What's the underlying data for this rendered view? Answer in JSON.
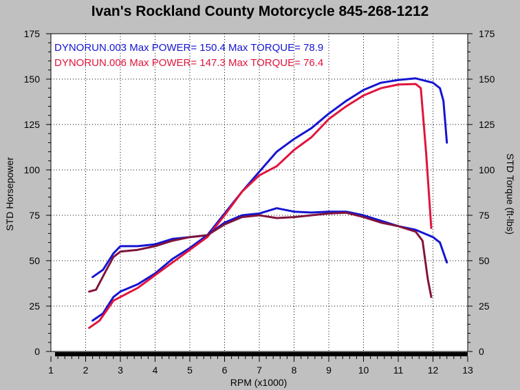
{
  "chart_data": {
    "type": "line",
    "title": "Ivan's Rockland County Motorcycle  845-268-1212",
    "xlabel": "RPM (x1000)",
    "ylabel_left": "STD Horsepower",
    "ylabel_right": "STD Torque (ft-lbs)",
    "xlim": [
      1,
      13
    ],
    "ylim": [
      0,
      175
    ],
    "x_ticks": [
      "1",
      "2",
      "3",
      "4",
      "5",
      "6",
      "7",
      "8",
      "9",
      "10",
      "11",
      "12",
      "13"
    ],
    "y_ticks": [
      "0",
      "25",
      "50",
      "75",
      "100",
      "125",
      "150",
      "175"
    ],
    "grid": true,
    "legend_position": "top-left",
    "legend": [
      {
        "text": "DYNORUN.003  Max POWER= 150.4  Max TORQUE= 78.9",
        "color": "#1414d2"
      },
      {
        "text": "DYNORUN.006  Max POWER= 147.3  Max TORQUE= 76.4",
        "color": "#e0143c"
      }
    ],
    "series": [
      {
        "name": "DYNORUN.003 power",
        "color": "#1414d2",
        "points": [
          [
            2.2,
            17
          ],
          [
            2.5,
            21
          ],
          [
            2.8,
            30
          ],
          [
            3.0,
            33
          ],
          [
            3.5,
            37
          ],
          [
            4.0,
            43
          ],
          [
            4.5,
            51
          ],
          [
            5.0,
            57
          ],
          [
            5.5,
            64
          ],
          [
            6.0,
            76
          ],
          [
            6.5,
            88
          ],
          [
            7.0,
            99
          ],
          [
            7.5,
            110
          ],
          [
            8.0,
            117
          ],
          [
            8.5,
            123
          ],
          [
            9.0,
            131
          ],
          [
            9.5,
            138
          ],
          [
            10.0,
            144
          ],
          [
            10.5,
            148
          ],
          [
            11.0,
            149.5
          ],
          [
            11.5,
            150.4
          ],
          [
            12.0,
            148
          ],
          [
            12.2,
            145
          ],
          [
            12.3,
            138
          ],
          [
            12.4,
            115
          ]
        ]
      },
      {
        "name": "DYNORUN.006 power",
        "color": "#e0143c",
        "points": [
          [
            2.1,
            13
          ],
          [
            2.4,
            17
          ],
          [
            2.8,
            28
          ],
          [
            3.0,
            30
          ],
          [
            3.5,
            35
          ],
          [
            4.0,
            42
          ],
          [
            4.5,
            49
          ],
          [
            5.0,
            56
          ],
          [
            5.5,
            63
          ],
          [
            6.0,
            75
          ],
          [
            6.5,
            88
          ],
          [
            7.0,
            97
          ],
          [
            7.5,
            102
          ],
          [
            8.0,
            111
          ],
          [
            8.5,
            118
          ],
          [
            9.0,
            128
          ],
          [
            9.5,
            135
          ],
          [
            10.0,
            141
          ],
          [
            10.5,
            145
          ],
          [
            11.0,
            147
          ],
          [
            11.5,
            147.3
          ],
          [
            11.65,
            145
          ],
          [
            11.8,
            110
          ],
          [
            11.95,
            68
          ]
        ]
      },
      {
        "name": "DYNORUN.003 torque",
        "color": "#1414d2",
        "points": [
          [
            2.2,
            41
          ],
          [
            2.5,
            45
          ],
          [
            2.8,
            54
          ],
          [
            3.0,
            58
          ],
          [
            3.5,
            58
          ],
          [
            4.0,
            59
          ],
          [
            4.5,
            62
          ],
          [
            5.0,
            63
          ],
          [
            5.5,
            64
          ],
          [
            6.0,
            71
          ],
          [
            6.5,
            75
          ],
          [
            7.0,
            76
          ],
          [
            7.5,
            78.9
          ],
          [
            8.0,
            77
          ],
          [
            8.5,
            76.5
          ],
          [
            9.0,
            77
          ],
          [
            9.5,
            77
          ],
          [
            10.0,
            75
          ],
          [
            10.5,
            72
          ],
          [
            11.0,
            69
          ],
          [
            11.5,
            67
          ],
          [
            12.0,
            63
          ],
          [
            12.2,
            60
          ],
          [
            12.4,
            49
          ]
        ]
      },
      {
        "name": "DYNORUN.006 torque",
        "color": "#80143c",
        "points": [
          [
            2.1,
            33
          ],
          [
            2.3,
            34
          ],
          [
            2.6,
            45
          ],
          [
            2.8,
            52
          ],
          [
            3.0,
            55
          ],
          [
            3.5,
            56
          ],
          [
            4.0,
            58
          ],
          [
            4.5,
            61
          ],
          [
            5.0,
            63
          ],
          [
            5.5,
            64
          ],
          [
            6.0,
            70
          ],
          [
            6.5,
            74
          ],
          [
            7.0,
            75
          ],
          [
            7.5,
            73.5
          ],
          [
            8.0,
            74
          ],
          [
            8.5,
            75
          ],
          [
            9.0,
            76
          ],
          [
            9.5,
            76.4
          ],
          [
            10.0,
            74
          ],
          [
            10.5,
            71
          ],
          [
            11.0,
            69
          ],
          [
            11.5,
            66
          ],
          [
            11.7,
            61
          ],
          [
            11.85,
            40
          ],
          [
            11.95,
            30
          ]
        ]
      }
    ]
  }
}
